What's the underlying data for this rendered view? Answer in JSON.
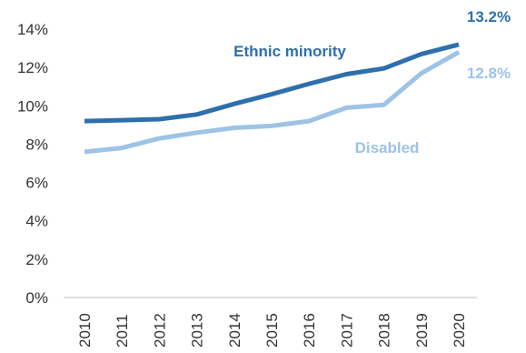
{
  "chart_data": {
    "type": "line",
    "x": [
      "2010",
      "2011",
      "2012",
      "2013",
      "2014",
      "2015",
      "2016",
      "2017",
      "2018",
      "2019",
      "2020"
    ],
    "series": [
      {
        "name": "Ethnic minority",
        "values": [
          9.2,
          9.25,
          9.3,
          9.55,
          10.1,
          10.6,
          11.15,
          11.65,
          11.95,
          12.7,
          13.2
        ],
        "color": "#2e6fac",
        "end_label": "13.2%"
      },
      {
        "name": "Disabled",
        "values": [
          7.6,
          7.8,
          8.3,
          8.6,
          8.85,
          8.95,
          9.2,
          9.9,
          10.05,
          11.7,
          12.8
        ],
        "color": "#9dc3e6",
        "end_label": "12.8%"
      }
    ],
    "ylim": [
      0,
      14
    ],
    "yticks": [
      "0%",
      "2%",
      "4%",
      "6%",
      "8%",
      "10%",
      "12%",
      "14%"
    ],
    "ytick_values": [
      0,
      2,
      4,
      6,
      8,
      10,
      12,
      14
    ],
    "grid": false,
    "legend": "inline labels"
  }
}
